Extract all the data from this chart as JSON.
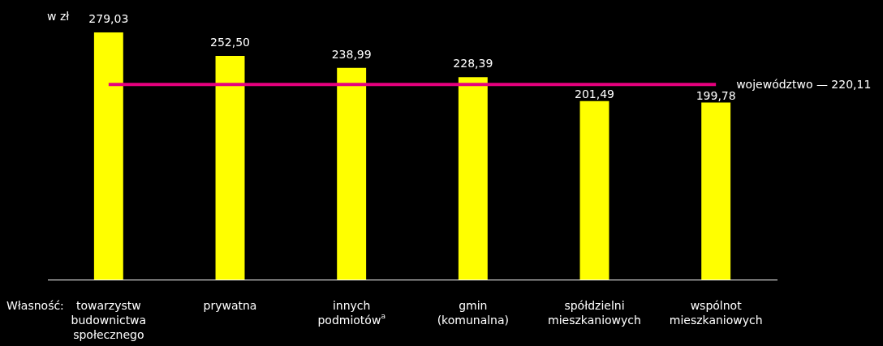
{
  "chart_data": {
    "type": "bar",
    "ylabel": "w zł",
    "xlabel": "Własność:",
    "categories": [
      "towarzystw budownictwa społecznego",
      "prywatna",
      "innych podmiotów$^{a}$",
      "gmin (komunalna)",
      "spółdzielni mieszkaniowych",
      "wspólnot mieszkaniowych"
    ],
    "values": [
      279.03,
      252.5,
      238.99,
      228.39,
      201.49,
      199.78
    ],
    "value_labels": [
      "279,03",
      "252,50",
      "238,99",
      "228,39",
      "201,49",
      "199,78"
    ],
    "color": "#ffff00",
    "ref_lines": [
      {
        "axis": "y",
        "value": 220.11,
        "label": "województwo — 220,11",
        "color": "#e6007e"
      }
    ],
    "grid": false,
    "legend": false
  }
}
